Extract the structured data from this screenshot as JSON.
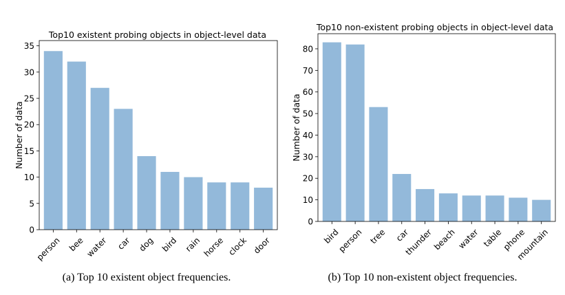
{
  "chart_data": [
    {
      "type": "bar",
      "title": "Top10 existent probing objects in object-level data",
      "xlabel": "",
      "ylabel": "Number of data",
      "categories": [
        "person",
        "bee",
        "water",
        "car",
        "dog",
        "bird",
        "rain",
        "horse",
        "clock",
        "door"
      ],
      "values": [
        34,
        32,
        27,
        23,
        14,
        11,
        10,
        9,
        9,
        8
      ],
      "ylim": [
        0,
        36
      ],
      "yticks": [
        0,
        5,
        10,
        15,
        20,
        25,
        30,
        35
      ],
      "bar_color": "#93b9da",
      "grid": false,
      "caption": "(a) Top 10 existent object frequencies."
    },
    {
      "type": "bar",
      "title": "Top10 non-existent probing objects in object-level data",
      "xlabel": "",
      "ylabel": "Number of data",
      "categories": [
        "bird",
        "person",
        "tree",
        "car",
        "thunder",
        "beach",
        "water",
        "table",
        "phone",
        "mountain"
      ],
      "values": [
        83,
        82,
        53,
        22,
        15,
        13,
        12,
        12,
        11,
        10
      ],
      "ylim": [
        0,
        87
      ],
      "yticks": [
        0,
        10,
        20,
        30,
        40,
        50,
        60,
        70,
        80
      ],
      "bar_color": "#93b9da",
      "grid": false,
      "caption": "(b) Top 10 non-existent object frequencies."
    }
  ]
}
